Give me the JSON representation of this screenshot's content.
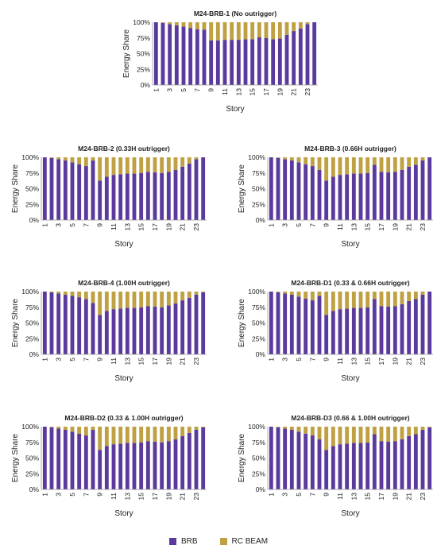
{
  "chart_data": [
    {
      "type": "bar",
      "stacked": true,
      "title": "M24-BRB-1 (No outrigger)",
      "xlabel": "Story",
      "ylabel": "Energy Share",
      "ylim": [
        0,
        100
      ],
      "yticks": [
        "0%",
        "25%",
        "50%",
        "75%",
        "100%"
      ],
      "categories": [
        1,
        2,
        3,
        4,
        5,
        6,
        7,
        8,
        9,
        10,
        11,
        12,
        13,
        14,
        15,
        16,
        17,
        18,
        19,
        20,
        21,
        22,
        23,
        24
      ],
      "tick_labels": [
        "1",
        "3",
        "5",
        "7",
        "9",
        "11",
        "13",
        "15",
        "17",
        "19",
        "21",
        "23"
      ],
      "series": [
        {
          "name": "BRB",
          "values": [
            100,
            99,
            97,
            95,
            93,
            91,
            89,
            88,
            71,
            71,
            72,
            72,
            72,
            73,
            73,
            76,
            75,
            73,
            74,
            80,
            86,
            90,
            97,
            100
          ]
        },
        {
          "name": "RC BEAM",
          "values": [
            0,
            1,
            3,
            5,
            7,
            9,
            11,
            12,
            29,
            29,
            28,
            28,
            28,
            27,
            27,
            24,
            25,
            27,
            26,
            20,
            14,
            10,
            3,
            0
          ]
        }
      ]
    },
    {
      "type": "bar",
      "stacked": true,
      "title": "M24-BRB-2 (0.33H outrigger)",
      "xlabel": "Story",
      "ylabel": "Energy Share",
      "ylim": [
        0,
        100
      ],
      "yticks": [
        "0%",
        "25%",
        "50%",
        "75%",
        "100%"
      ],
      "categories": [
        1,
        2,
        3,
        4,
        5,
        6,
        7,
        8,
        9,
        10,
        11,
        12,
        13,
        14,
        15,
        16,
        17,
        18,
        19,
        20,
        21,
        22,
        23,
        24
      ],
      "tick_labels": [
        "1",
        "3",
        "5",
        "7",
        "9",
        "11",
        "13",
        "15",
        "17",
        "19",
        "21",
        "23"
      ],
      "series": [
        {
          "name": "BRB",
          "values": [
            100,
            99,
            97,
            95,
            92,
            89,
            86,
            95,
            63,
            69,
            72,
            73,
            74,
            74,
            75,
            77,
            76,
            75,
            77,
            80,
            85,
            90,
            97,
            100
          ]
        },
        {
          "name": "RC BEAM",
          "values": [
            0,
            1,
            3,
            5,
            8,
            11,
            14,
            5,
            37,
            31,
            28,
            27,
            26,
            26,
            25,
            23,
            24,
            25,
            23,
            20,
            15,
            10,
            3,
            0
          ]
        }
      ]
    },
    {
      "type": "bar",
      "stacked": true,
      "title": "M24-BRB-3 (0.66H outrigger)",
      "xlabel": "Story",
      "ylabel": "Energy Share",
      "ylim": [
        0,
        100
      ],
      "yticks": [
        "0%",
        "25%",
        "50%",
        "75%",
        "100%"
      ],
      "categories": [
        1,
        2,
        3,
        4,
        5,
        6,
        7,
        8,
        9,
        10,
        11,
        12,
        13,
        14,
        15,
        16,
        17,
        18,
        19,
        20,
        21,
        22,
        23,
        24
      ],
      "tick_labels": [
        "1",
        "3",
        "5",
        "7",
        "9",
        "11",
        "13",
        "15",
        "17",
        "19",
        "21",
        "23"
      ],
      "series": [
        {
          "name": "BRB",
          "values": [
            100,
            99,
            97,
            95,
            92,
            89,
            86,
            80,
            63,
            69,
            72,
            73,
            74,
            74,
            75,
            88,
            77,
            76,
            77,
            80,
            85,
            88,
            95,
            100
          ]
        },
        {
          "name": "RC BEAM",
          "values": [
            0,
            1,
            3,
            5,
            8,
            11,
            14,
            20,
            37,
            31,
            28,
            27,
            26,
            26,
            25,
            12,
            23,
            24,
            23,
            20,
            15,
            12,
            5,
            0
          ]
        }
      ]
    },
    {
      "type": "bar",
      "stacked": true,
      "title": "M24-BRB-4 (1.00H outrigger)",
      "xlabel": "Story",
      "ylabel": "Energy Share",
      "ylim": [
        0,
        100
      ],
      "yticks": [
        "0%",
        "25%",
        "50%",
        "75%",
        "100%"
      ],
      "categories": [
        1,
        2,
        3,
        4,
        5,
        6,
        7,
        8,
        9,
        10,
        11,
        12,
        13,
        14,
        15,
        16,
        17,
        18,
        19,
        20,
        21,
        22,
        23,
        24
      ],
      "tick_labels": [
        "1",
        "3",
        "5",
        "7",
        "9",
        "11",
        "13",
        "15",
        "17",
        "19",
        "21",
        "23"
      ],
      "series": [
        {
          "name": "BRB",
          "values": [
            100,
            99,
            97,
            95,
            93,
            91,
            88,
            82,
            63,
            69,
            72,
            73,
            74,
            74,
            75,
            77,
            76,
            75,
            78,
            81,
            86,
            90,
            95,
            99
          ]
        },
        {
          "name": "RC BEAM",
          "values": [
            0,
            1,
            3,
            5,
            7,
            9,
            12,
            18,
            37,
            31,
            28,
            27,
            26,
            26,
            25,
            23,
            24,
            25,
            22,
            19,
            14,
            10,
            5,
            1
          ]
        }
      ]
    },
    {
      "type": "bar",
      "stacked": true,
      "title": "M24-BRB-D1 (0.33 & 0.66H outrigger)",
      "xlabel": "Story",
      "ylabel": "Energy Share",
      "ylim": [
        0,
        100
      ],
      "yticks": [
        "0%",
        "25%",
        "50%",
        "75%",
        "100%"
      ],
      "categories": [
        1,
        2,
        3,
        4,
        5,
        6,
        7,
        8,
        9,
        10,
        11,
        12,
        13,
        14,
        15,
        16,
        17,
        18,
        19,
        20,
        21,
        22,
        23,
        24
      ],
      "tick_labels": [
        "1",
        "3",
        "5",
        "7",
        "9",
        "11",
        "13",
        "15",
        "17",
        "19",
        "21",
        "23"
      ],
      "series": [
        {
          "name": "BRB",
          "values": [
            100,
            99,
            97,
            95,
            92,
            89,
            86,
            93,
            63,
            69,
            72,
            73,
            74,
            74,
            75,
            88,
            77,
            76,
            77,
            80,
            85,
            88,
            95,
            100
          ]
        },
        {
          "name": "RC BEAM",
          "values": [
            0,
            1,
            3,
            5,
            8,
            11,
            14,
            7,
            37,
            31,
            28,
            27,
            26,
            26,
            25,
            12,
            23,
            24,
            23,
            20,
            15,
            12,
            5,
            0
          ]
        }
      ]
    },
    {
      "type": "bar",
      "stacked": true,
      "title": "M24-BRB-D2 (0.33 & 1.00H outrigger)",
      "xlabel": "Story",
      "ylabel": "Energy Share",
      "ylim": [
        0,
        100
      ],
      "yticks": [
        "0%",
        "25%",
        "50%",
        "75%",
        "100%"
      ],
      "categories": [
        1,
        2,
        3,
        4,
        5,
        6,
        7,
        8,
        9,
        10,
        11,
        12,
        13,
        14,
        15,
        16,
        17,
        18,
        19,
        20,
        21,
        22,
        23,
        24
      ],
      "tick_labels": [
        "1",
        "3",
        "5",
        "7",
        "9",
        "11",
        "13",
        "15",
        "17",
        "19",
        "21",
        "23"
      ],
      "series": [
        {
          "name": "BRB",
          "values": [
            100,
            99,
            97,
            95,
            92,
            89,
            86,
            95,
            63,
            69,
            72,
            73,
            74,
            74,
            75,
            77,
            76,
            75,
            77,
            80,
            85,
            90,
            95,
            99
          ]
        },
        {
          "name": "RC BEAM",
          "values": [
            0,
            1,
            3,
            5,
            8,
            11,
            14,
            5,
            37,
            31,
            28,
            27,
            26,
            26,
            25,
            23,
            24,
            25,
            23,
            20,
            15,
            10,
            5,
            1
          ]
        }
      ]
    },
    {
      "type": "bar",
      "stacked": true,
      "title": "M24-BRB-D3 (0.66 & 1.00H outrigger)",
      "xlabel": "Story",
      "ylabel": "Energy Share",
      "ylim": [
        0,
        100
      ],
      "yticks": [
        "0%",
        "25%",
        "50%",
        "75%",
        "100%"
      ],
      "categories": [
        1,
        2,
        3,
        4,
        5,
        6,
        7,
        8,
        9,
        10,
        11,
        12,
        13,
        14,
        15,
        16,
        17,
        18,
        19,
        20,
        21,
        22,
        23,
        24
      ],
      "tick_labels": [
        "1",
        "3",
        "5",
        "7",
        "9",
        "11",
        "13",
        "15",
        "17",
        "19",
        "21",
        "23"
      ],
      "series": [
        {
          "name": "BRB",
          "values": [
            100,
            99,
            97,
            95,
            92,
            89,
            86,
            80,
            63,
            69,
            72,
            73,
            74,
            74,
            75,
            88,
            77,
            76,
            77,
            80,
            85,
            88,
            95,
            99
          ]
        },
        {
          "name": "RC BEAM",
          "values": [
            0,
            1,
            3,
            5,
            8,
            11,
            14,
            20,
            37,
            31,
            28,
            27,
            26,
            26,
            25,
            12,
            23,
            24,
            23,
            20,
            15,
            12,
            5,
            1
          ]
        }
      ]
    }
  ],
  "legend": {
    "items": [
      {
        "label": "BRB",
        "color": "#5b3a9e"
      },
      {
        "label": "RC BEAM",
        "color": "#bfa042"
      }
    ]
  },
  "colors": {
    "brb": "#5b3a9e",
    "rc_beam": "#bfa042",
    "axis": "#9a9a9a"
  }
}
